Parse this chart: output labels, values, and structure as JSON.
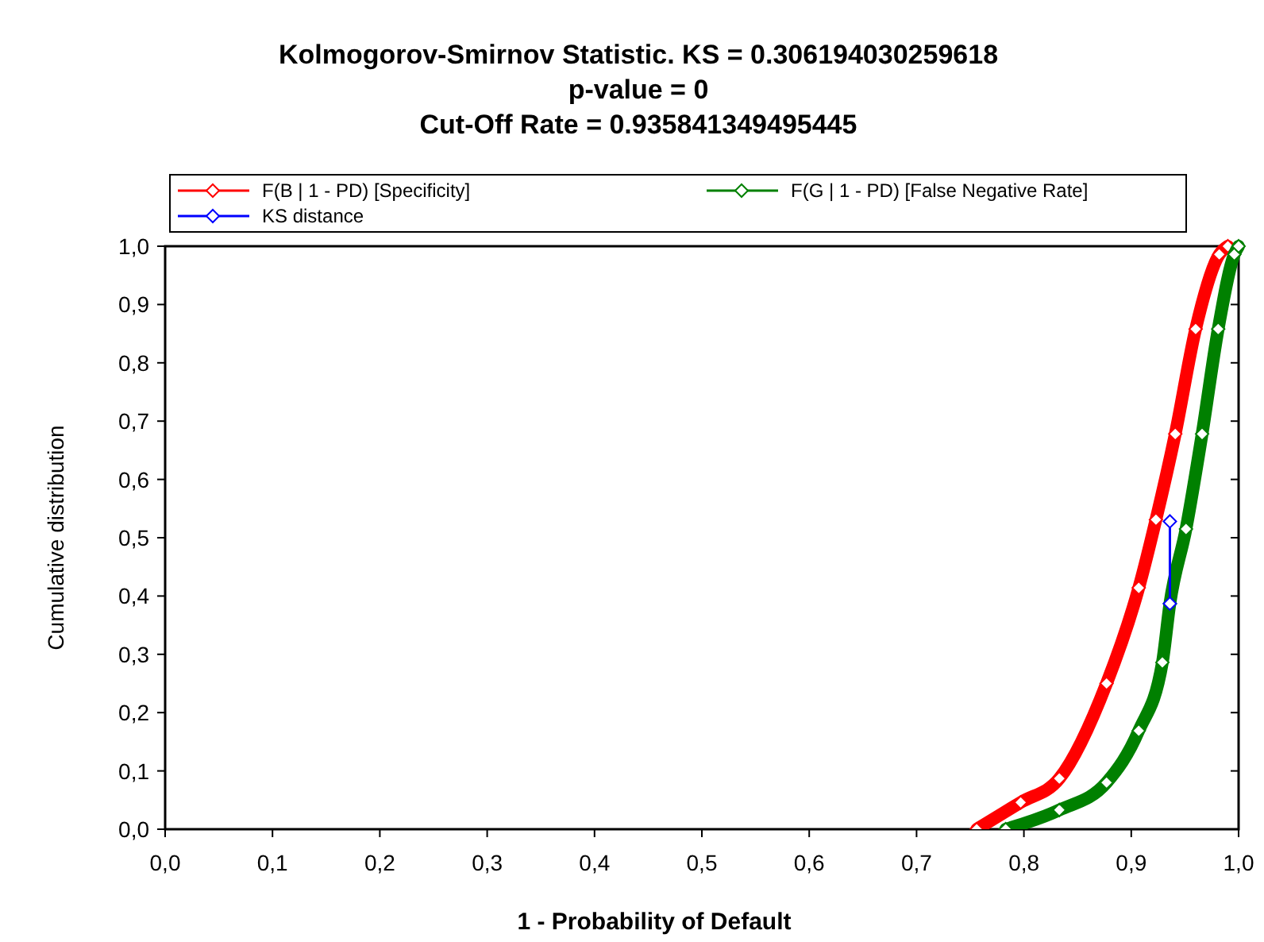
{
  "chart_data": {
    "type": "line",
    "title": "Kolmogorov-Smirnov Statistic. KS = 0.306194030259618\np-value = 0\nCut-Off Rate = 0.935841349495445",
    "xlabel": "1 - Probability of Default",
    "ylabel": "Cumulative distribution",
    "xlim": [
      0,
      1
    ],
    "ylim": [
      0,
      1
    ],
    "xticks": [
      {
        "value": 0,
        "label": "0,0"
      },
      {
        "value": 0.1,
        "label": "0,1"
      },
      {
        "value": 0.2,
        "label": "0,2"
      },
      {
        "value": 0.3,
        "label": "0,3"
      },
      {
        "value": 0.4,
        "label": "0,4"
      },
      {
        "value": 0.5,
        "label": "0,5"
      },
      {
        "value": 0.6,
        "label": "0,6"
      },
      {
        "value": 0.7,
        "label": "0,7"
      },
      {
        "value": 0.8,
        "label": "0,8"
      },
      {
        "value": 0.9,
        "label": "0,9"
      },
      {
        "value": 1,
        "label": "1,0"
      }
    ],
    "yticks": [
      {
        "value": 0,
        "label": "0,0"
      },
      {
        "value": 0.1,
        "label": "0,1"
      },
      {
        "value": 0.2,
        "label": "0,2"
      },
      {
        "value": 0.3,
        "label": "0,3"
      },
      {
        "value": 0.4,
        "label": "0,4"
      },
      {
        "value": 0.5,
        "label": "0,5"
      },
      {
        "value": 0.6,
        "label": "0,6"
      },
      {
        "value": 0.7,
        "label": "0,7"
      },
      {
        "value": 0.8,
        "label": "0,8"
      },
      {
        "value": 0.9,
        "label": "0,9"
      },
      {
        "value": 1,
        "label": "1,0"
      }
    ],
    "legend": "top",
    "marker": "diamond",
    "grid": false,
    "series": [
      {
        "name": "F(B | 1 - PD) [Specificity]",
        "color": "#ff0000",
        "x": [
          0.756,
          0.797,
          0.833,
          0.877,
          0.907,
          0.923,
          0.941,
          0.96,
          0.982,
          0.99
        ],
        "values": [
          0,
          0.046,
          0.087,
          0.25,
          0.414,
          0.531,
          0.678,
          0.858,
          0.986,
          1
        ]
      },
      {
        "name": "F(G | 1 - PD) [False Negative Rate]",
        "color": "#008000",
        "x": [
          0.783,
          0.833,
          0.877,
          0.907,
          0.929,
          0.936,
          0.951,
          0.966,
          0.981,
          0.996,
          1
        ],
        "values": [
          0,
          0.033,
          0.08,
          0.169,
          0.286,
          0.387,
          0.515,
          0.678,
          0.858,
          0.986,
          1
        ]
      },
      {
        "name": "KS distance",
        "color": "#0000ff",
        "x": [
          0.936,
          0.936
        ],
        "values": [
          0.387,
          0.528
        ]
      }
    ]
  }
}
